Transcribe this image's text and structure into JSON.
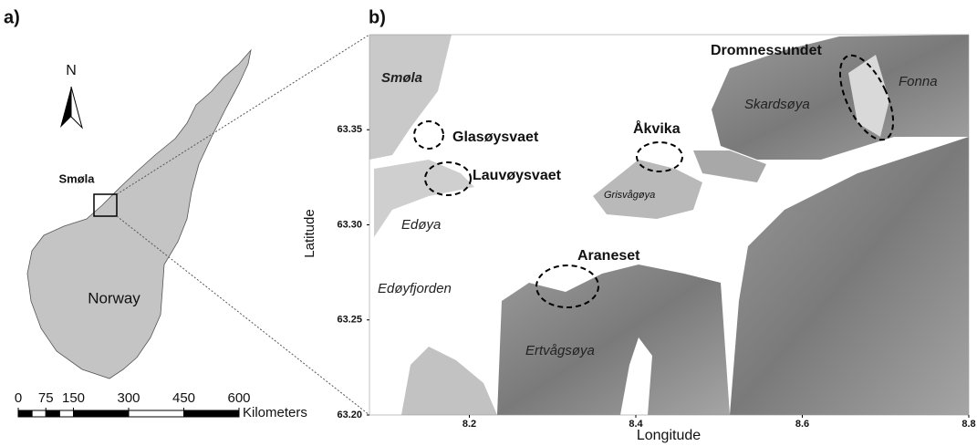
{
  "panel_a": {
    "label": "a)",
    "north": "N",
    "region": "Smøla",
    "country": "Norway",
    "scale": {
      "ticks": [
        0,
        75,
        150,
        300,
        450,
        600
      ],
      "unit": "Kilometers"
    }
  },
  "panel_b": {
    "label": "b)",
    "xlabel": "Longitude",
    "ylabel": "Latitude",
    "xlim": [
      8.08,
      8.8
    ],
    "ylim": [
      63.2,
      63.4
    ],
    "xticks": [
      8.2,
      8.4,
      8.6,
      8.8
    ],
    "yticks": [
      {
        "value": 63.2,
        "label": "63.20"
      },
      63.25,
      {
        "value": 63.3,
        "label": "63.30"
      },
      63.35
    ],
    "places": [
      "Smøla",
      "Glasøysvaet",
      "Lauvøysvaet",
      "Edøya",
      "Edøyfjorden",
      "Araneset",
      "Åkvika",
      "Grisvågøya",
      "Dromnessundet",
      "Skardsøya",
      "Fonna",
      "Ertvågsøya"
    ]
  }
}
